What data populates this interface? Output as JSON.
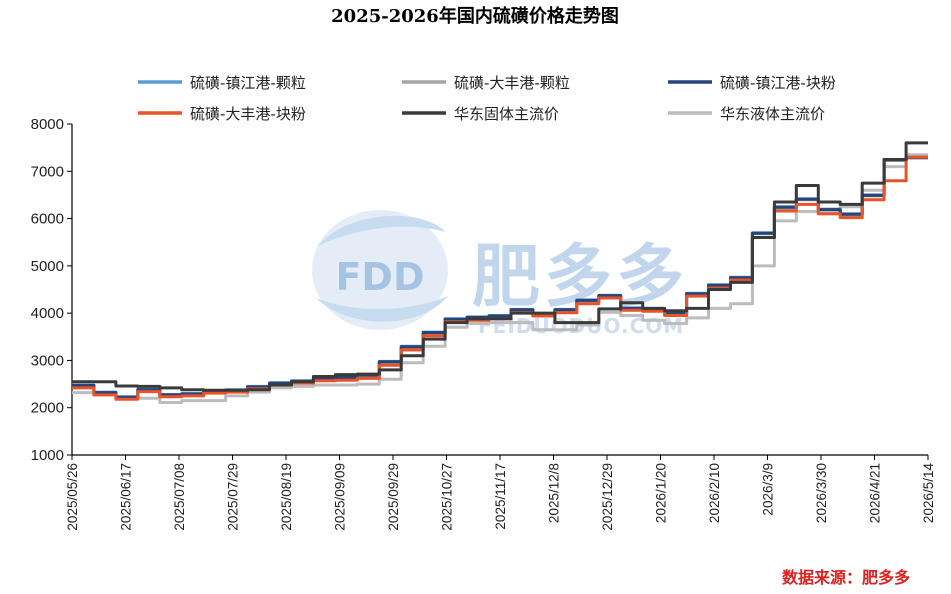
{
  "chart_data": {
    "type": "line",
    "title": "2025-2026年国内硫磺价格走势图",
    "xlabel": "",
    "ylabel": "",
    "ylim": [
      1000,
      8000
    ],
    "yticks": [
      1000,
      2000,
      3000,
      4000,
      5000,
      6000,
      7000,
      8000
    ],
    "xtick_labels": [
      "2025/05/26",
      "2025/06/17",
      "2025/07/08",
      "2025/07/29",
      "2025/08/19",
      "2025/09/09",
      "2025/09/29",
      "2025/10/27",
      "2025/11/17",
      "2025/12/8",
      "2025/12/29",
      "2026/1/20",
      "2026/2/10",
      "2026/3/9",
      "2026/3/30",
      "2026/4/21",
      "2026/5/14"
    ],
    "grid": false,
    "legend_position": "top",
    "source_text": "数据来源：肥多多",
    "watermark": {
      "logo_text": "FDD",
      "brand": "肥多多",
      "url": "FEIDUODUO.COM"
    },
    "series": [
      {
        "name": "硫磺-镇江港-颗粒",
        "color": "#5b9bd5",
        "width": 3,
        "values": [
          2480,
          2330,
          2230,
          2390,
          2280,
          2300,
          2360,
          2380,
          2450,
          2530,
          2570,
          2620,
          2650,
          2700,
          2980,
          3300,
          3600,
          3880,
          3920,
          3950,
          4080,
          3990,
          4080,
          4280,
          4380,
          4110,
          4100,
          4000,
          4420,
          4600,
          4760,
          5700,
          6250,
          6420,
          6200,
          6100,
          6500,
          7250,
          7300
        ]
      },
      {
        "name": "硫磺-大丰港-颗粒",
        "color": "#a5a5a5",
        "width": 3,
        "values": [
          2440,
          2290,
          2200,
          2360,
          2250,
          2270,
          2330,
          2350,
          2420,
          2500,
          2540,
          2590,
          2620,
          2670,
          2950,
          3270,
          3570,
          3860,
          3890,
          3920,
          4050,
          3970,
          4050,
          4250,
          4350,
          4090,
          4080,
          3980,
          4400,
          4580,
          4740,
          5680,
          6220,
          6400,
          6180,
          6080,
          6480,
          7230,
          7280
        ]
      },
      {
        "name": "硫磺-镇江港-块粉",
        "color": "#264478",
        "width": 3,
        "values": [
          2470,
          2320,
          2220,
          2380,
          2270,
          2290,
          2350,
          2370,
          2440,
          2520,
          2560,
          2610,
          2640,
          2690,
          2970,
          3290,
          3590,
          3870,
          3910,
          3940,
          4070,
          3980,
          4070,
          4270,
          4370,
          4100,
          4090,
          3990,
          4410,
          4590,
          4750,
          5690,
          6240,
          6410,
          6190,
          6090,
          6490,
          7240,
          7290
        ]
      },
      {
        "name": "硫磺-大丰港-块粉",
        "color": "#e8532a",
        "width": 3,
        "values": [
          2420,
          2270,
          2180,
          2340,
          2230,
          2250,
          2310,
          2330,
          2400,
          2480,
          2520,
          2570,
          2580,
          2620,
          2900,
          3220,
          3520,
          3820,
          3850,
          3880,
          4010,
          3940,
          4010,
          4200,
          4320,
          4060,
          4040,
          3950,
          4360,
          4530,
          4700,
          5600,
          6160,
          6300,
          6100,
          6020,
          6400,
          6800,
          7300
        ]
      },
      {
        "name": "华东固体主流价",
        "color": "#3a3a3a",
        "width": 3,
        "values": [
          2550,
          2550,
          2460,
          2450,
          2420,
          2380,
          2370,
          2370,
          2380,
          2480,
          2550,
          2660,
          2700,
          2710,
          2800,
          3100,
          3450,
          3800,
          3880,
          3880,
          4000,
          4000,
          3800,
          3800,
          4090,
          4220,
          4100,
          4050,
          4100,
          4500,
          4650,
          5600,
          6350,
          6700,
          6350,
          6300,
          6750,
          7250,
          7600
        ]
      },
      {
        "name": "华东液体主流价",
        "color": "#bcbcbc",
        "width": 3,
        "values": [
          2320,
          2270,
          2210,
          2200,
          2110,
          2150,
          2150,
          2250,
          2330,
          2420,
          2450,
          2480,
          2480,
          2500,
          2600,
          2950,
          3300,
          3700,
          3780,
          3800,
          3800,
          3650,
          3650,
          3750,
          4020,
          3950,
          3850,
          3780,
          3900,
          4100,
          4200,
          5000,
          5950,
          6150,
          6100,
          6250,
          6600,
          7100,
          7350
        ]
      }
    ]
  }
}
